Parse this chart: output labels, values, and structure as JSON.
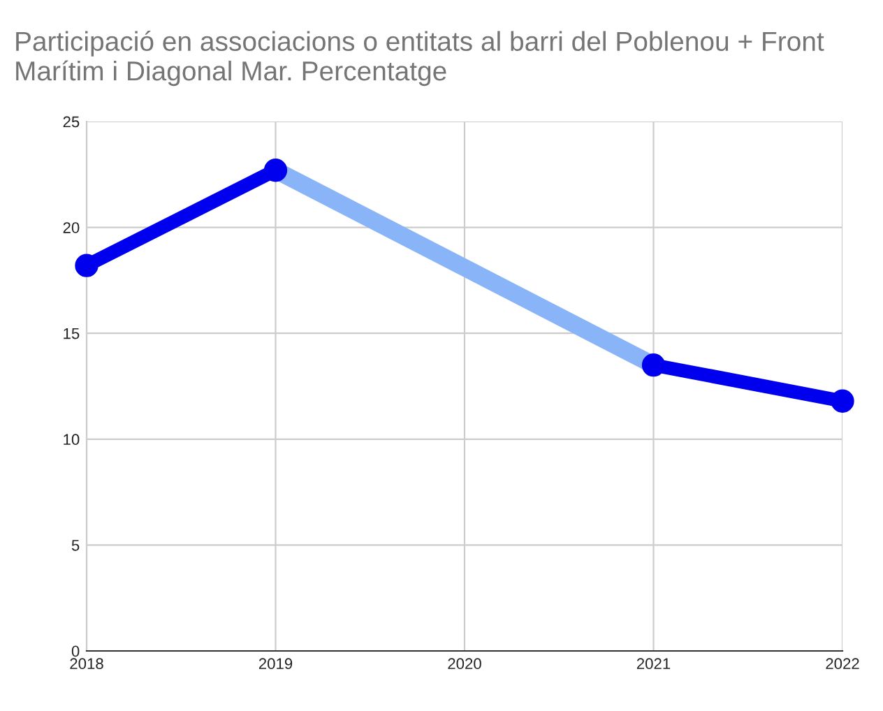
{
  "chart_data": {
    "type": "line",
    "title": "Participació en associacions o entitats al barri del Poblenou + Front Marítim i Diagonal Mar. Percentatge",
    "x": [
      2018,
      2019,
      2020,
      2021,
      2022
    ],
    "series": [
      {
        "color": "#8ab4f8",
        "x": [
          2019,
          2021
        ],
        "values": [
          22.7,
          13.5
        ],
        "marker": "none"
      },
      {
        "color": "#0000ee",
        "values": [
          18.2,
          22.7,
          null,
          13.5,
          11.8
        ],
        "marker": "circle"
      }
    ],
    "xlim": [
      2018,
      2022
    ],
    "xticks": [
      2018,
      2019,
      2020,
      2021,
      2022
    ],
    "ylim": [
      0,
      25
    ],
    "yticks": [
      0,
      5,
      10,
      15,
      20,
      25
    ],
    "grid": true,
    "line_style": "solid"
  }
}
